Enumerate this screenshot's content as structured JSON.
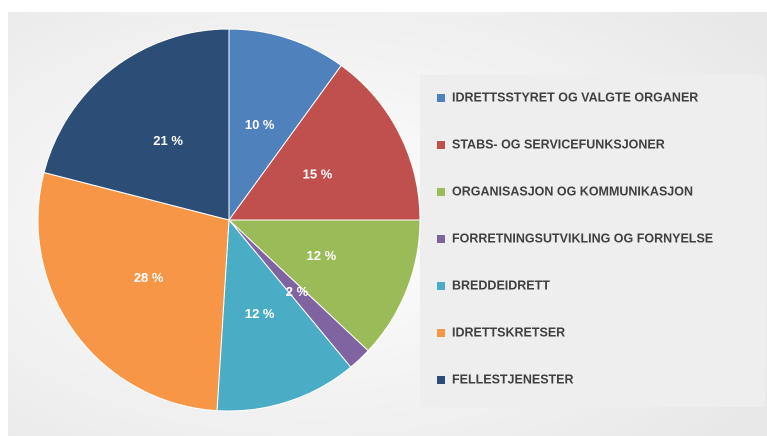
{
  "chart_data": {
    "type": "pie",
    "categories": [
      "IDRETTSSTYRET OG VALGTE ORGANER",
      "STABS- OG SERVICEFUNKSJONER",
      "ORGANISASJON OG KOMMUNIKASJON",
      "FORRETNINGSUTVIKLING OG FORNYELSE",
      "BREDDEIDRETT",
      "IDRETTSKRETSER",
      "FELLESTJENESTER"
    ],
    "values": [
      10,
      15,
      12,
      2,
      12,
      28,
      21
    ],
    "value_labels": [
      "10 %",
      "15 %",
      "12 %",
      "2 %",
      "12 %",
      "28 %",
      "21 %"
    ],
    "colors": [
      "#4f81bd",
      "#c0504d",
      "#9bbb59",
      "#8064a2",
      "#4bacc6",
      "#f79646",
      "#2c4d75"
    ],
    "legend": "right"
  }
}
